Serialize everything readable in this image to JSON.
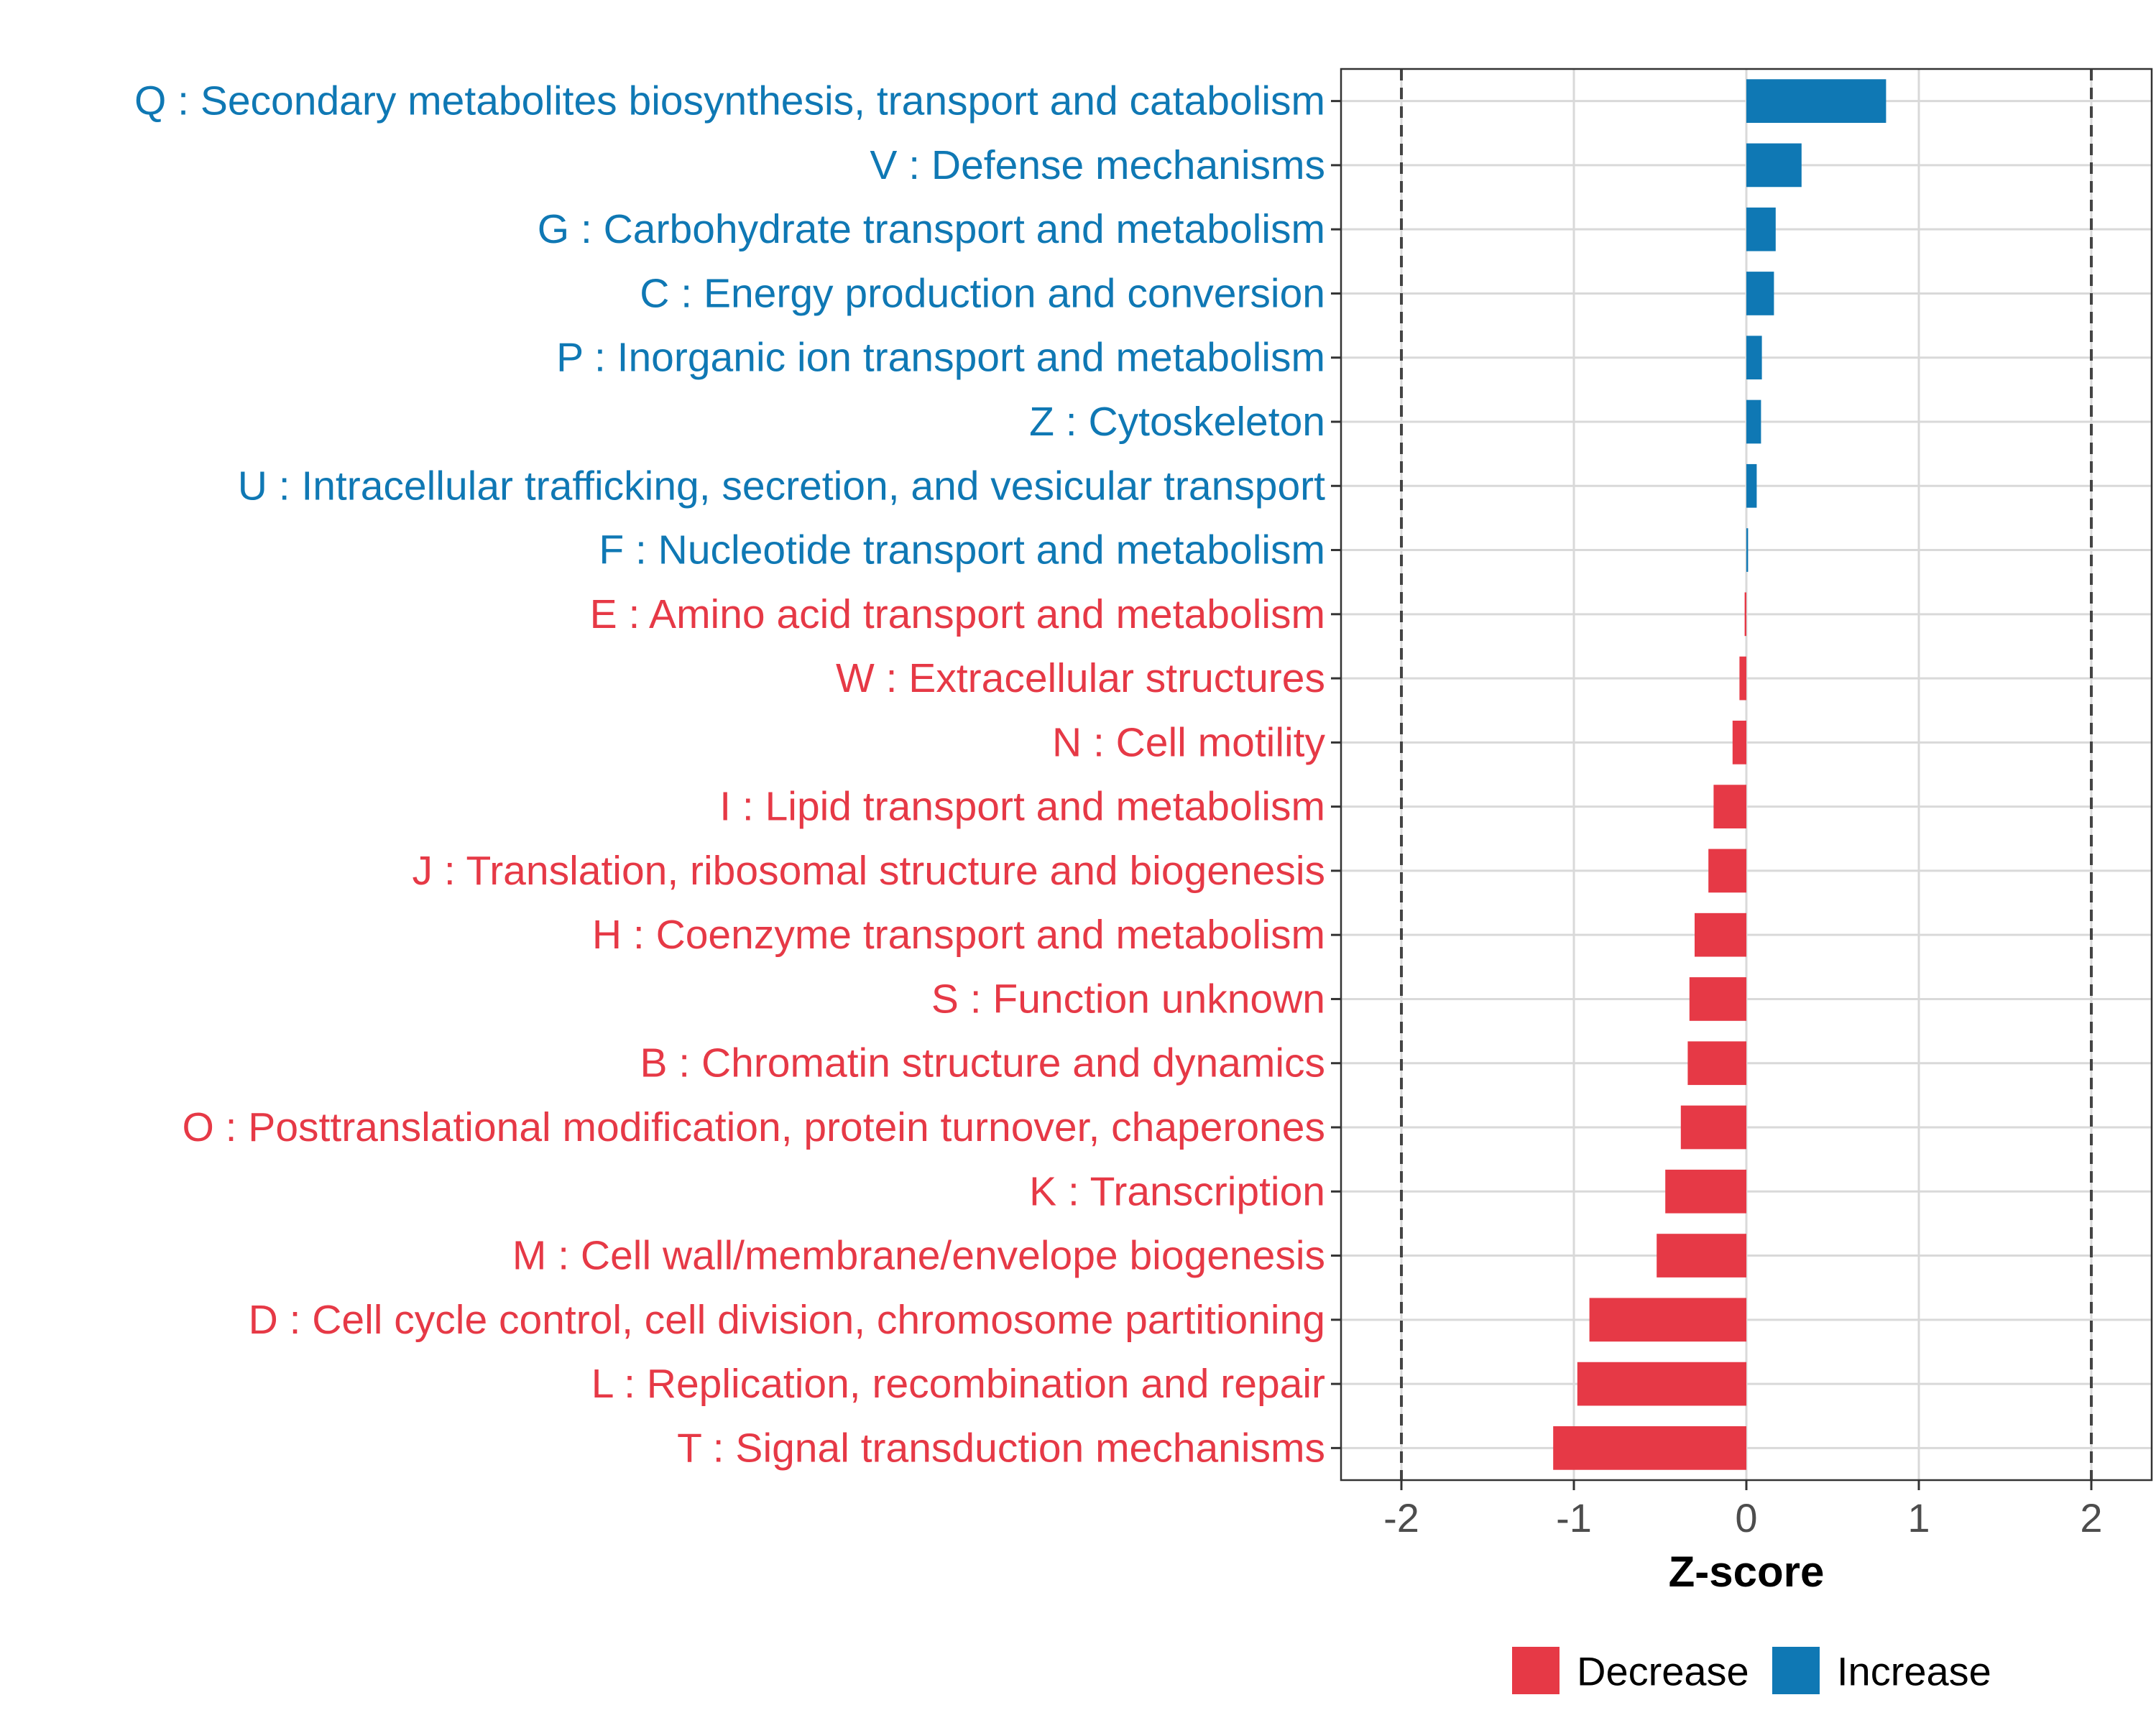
{
  "chart_data": {
    "type": "bar",
    "orientation": "horizontal",
    "xlabel": "Z-score",
    "ylabel": "",
    "xlim": [
      -2.35,
      2.35
    ],
    "xticks": [
      -2,
      -1,
      0,
      1,
      2
    ],
    "tick_labels": [
      "-2",
      "-1",
      "0",
      "1",
      "2"
    ],
    "reference_lines": [
      -2,
      2
    ],
    "grid": true,
    "categories": [
      "Q : Secondary metabolites biosynthesis, transport and catabolism",
      "V : Defense mechanisms",
      "G : Carbohydrate transport and metabolism",
      "C : Energy production and conversion",
      "P : Inorganic ion transport and metabolism",
      "Z : Cytoskeleton",
      "U : Intracellular trafficking, secretion, and vesicular transport",
      "F : Nucleotide transport and metabolism",
      "E : Amino acid transport and metabolism",
      "W : Extracellular structures",
      "N : Cell motility",
      "I : Lipid transport and metabolism",
      "J : Translation, ribosomal structure and biogenesis",
      "H : Coenzyme transport and metabolism",
      "S : Function unknown",
      "B : Chromatin structure and dynamics",
      "O : Posttranslational modification, protein turnover, chaperones",
      "K : Transcription",
      "M : Cell wall/membrane/envelope biogenesis",
      "D : Cell cycle control, cell division, chromosome partitioning",
      "L : Replication, recombination and repair",
      "T : Signal transduction mechanisms"
    ],
    "values": [
      0.81,
      0.32,
      0.17,
      0.16,
      0.09,
      0.085,
      0.06,
      0.01,
      -0.01,
      -0.04,
      -0.08,
      -0.19,
      -0.22,
      -0.3,
      -0.33,
      -0.34,
      -0.38,
      -0.47,
      -0.52,
      -0.91,
      -0.98,
      -1.12
    ],
    "groups": [
      "Increase",
      "Increase",
      "Increase",
      "Increase",
      "Increase",
      "Increase",
      "Increase",
      "Increase",
      "Decrease",
      "Decrease",
      "Decrease",
      "Decrease",
      "Decrease",
      "Decrease",
      "Decrease",
      "Decrease",
      "Decrease",
      "Decrease",
      "Decrease",
      "Decrease",
      "Decrease",
      "Decrease"
    ],
    "legend": {
      "position": "bottom",
      "entries": [
        {
          "label": "Decrease",
          "color": "#E63946"
        },
        {
          "label": "Increase",
          "color": "#0F78B4"
        }
      ]
    },
    "colors": {
      "Decrease": "#E63946",
      "Increase": "#0F78B4"
    }
  }
}
